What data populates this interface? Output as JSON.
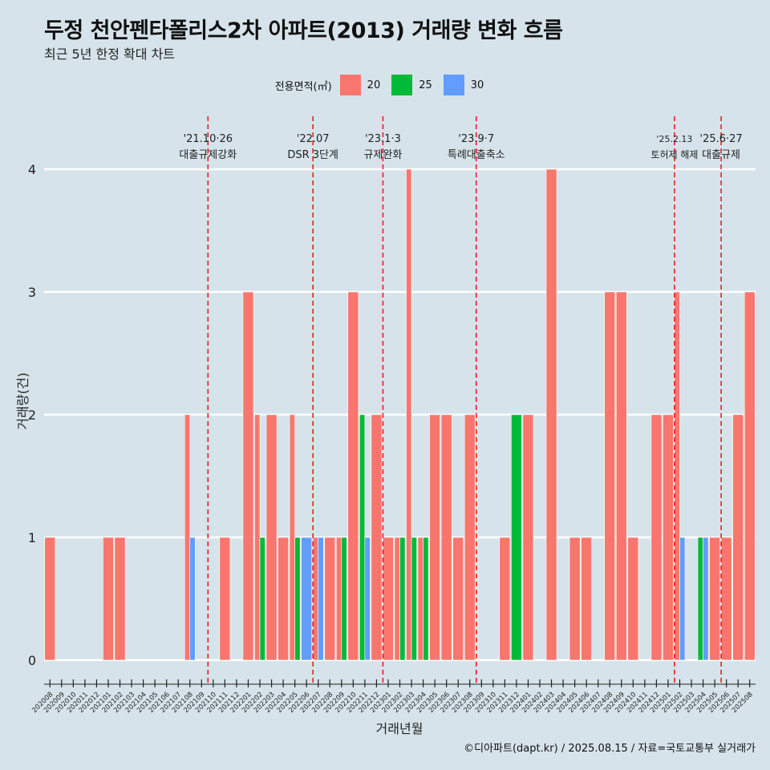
{
  "title": "두정 천안펜타폴리스2차 아파트(2013) 거래량 변화 흐름",
  "subtitle": "최근 5년 한정 확대 차트",
  "legend_title": "전용면적(㎡)",
  "caption": "©디아파트(dapt.kr) / 2025.08.15 / 자료=국토교통부 실거래가",
  "colors": {
    "20": "#f8766d",
    "25": "#00ba38",
    "30": "#619cff",
    "background": "#d6e3ea",
    "grid": "#ffffff",
    "vline": "#ee1111"
  },
  "chart_data": {
    "type": "bar",
    "xlabel": "거래년월",
    "ylabel": "거래량(건)",
    "ylim": [
      0,
      4
    ],
    "yticks": [
      0,
      1,
      2,
      3,
      4
    ],
    "categories": [
      "202008",
      "202009",
      "202010",
      "202011",
      "202012",
      "202101",
      "202102",
      "202103",
      "202104",
      "202105",
      "202106",
      "202107",
      "202108",
      "202109",
      "202110",
      "202111",
      "202112",
      "202201",
      "202202",
      "202203",
      "202204",
      "202205",
      "202206",
      "202207",
      "202208",
      "202209",
      "202210",
      "202211",
      "202212",
      "202301",
      "202302",
      "202303",
      "202304",
      "202305",
      "202306",
      "202307",
      "202308",
      "202309",
      "202310",
      "202311",
      "202312",
      "202401",
      "202402",
      "202403",
      "202404",
      "202405",
      "202406",
      "202407",
      "202408",
      "202409",
      "202410",
      "202411",
      "202412",
      "202501",
      "202502",
      "202503",
      "202504",
      "202505",
      "202506",
      "202507",
      "202508"
    ],
    "series": [
      {
        "name": "20",
        "color": "#f8766d",
        "values": [
          1,
          0,
          0,
          0,
          0,
          1,
          1,
          0,
          0,
          0,
          0,
          0,
          2,
          0,
          0,
          1,
          0,
          3,
          2,
          2,
          1,
          2,
          0,
          1,
          1,
          1,
          3,
          0,
          2,
          1,
          1,
          4,
          1,
          2,
          2,
          1,
          2,
          0,
          0,
          1,
          0,
          2,
          0,
          4,
          0,
          1,
          1,
          0,
          3,
          3,
          1,
          0,
          2,
          2,
          3,
          0,
          0,
          1,
          1,
          2,
          3
        ]
      },
      {
        "name": "25",
        "color": "#00ba38",
        "values": [
          0,
          0,
          0,
          0,
          0,
          0,
          0,
          0,
          0,
          0,
          0,
          0,
          0,
          0,
          0,
          0,
          0,
          0,
          1,
          0,
          0,
          1,
          0,
          0,
          0,
          1,
          0,
          2,
          0,
          0,
          1,
          1,
          1,
          0,
          0,
          0,
          0,
          0,
          0,
          0,
          2,
          0,
          0,
          0,
          0,
          0,
          0,
          0,
          0,
          0,
          0,
          0,
          0,
          0,
          0,
          0,
          1,
          0,
          0,
          0,
          0
        ]
      },
      {
        "name": "30",
        "color": "#619cff",
        "values": [
          0,
          0,
          0,
          0,
          0,
          0,
          0,
          0,
          0,
          0,
          0,
          0,
          1,
          0,
          0,
          0,
          0,
          0,
          0,
          0,
          0,
          0,
          1,
          1,
          0,
          0,
          0,
          1,
          0,
          0,
          0,
          0,
          0,
          0,
          0,
          0,
          0,
          0,
          0,
          0,
          0,
          0,
          0,
          0,
          0,
          0,
          0,
          0,
          0,
          0,
          0,
          0,
          0,
          0,
          1,
          0,
          1,
          0,
          0,
          0,
          0
        ]
      }
    ],
    "annotations": [
      {
        "date": "'21.10·26",
        "label": "대출규제강화",
        "x": "202110"
      },
      {
        "date": "'22.07",
        "label": "DSR 3단계",
        "x": "202207"
      },
      {
        "date": "'23.1·3",
        "label": "규제완화",
        "x": "202301"
      },
      {
        "date": "'23.9·7",
        "label": "특례대출축소",
        "x": "202309"
      },
      {
        "date": "'25.2.13",
        "label": "토허제 해제",
        "x": "202502"
      },
      {
        "date": "'25.6·27",
        "label": "대출규제",
        "x": "202506"
      }
    ],
    "grid": true,
    "legend_position": "top"
  }
}
